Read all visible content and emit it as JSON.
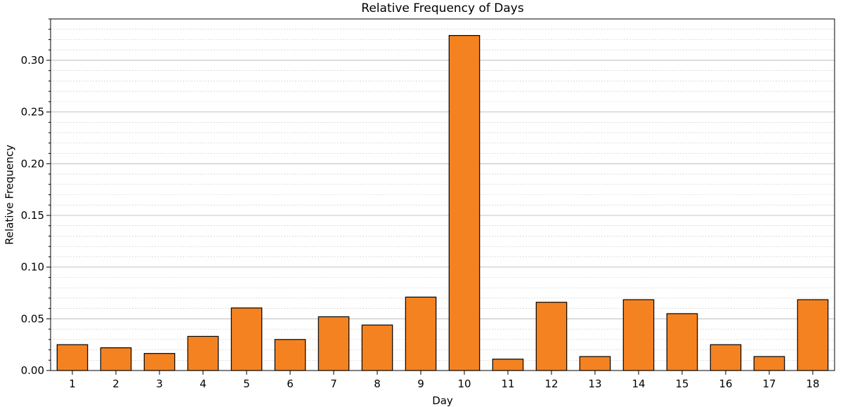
{
  "chart_data": {
    "type": "bar",
    "title": "Relative Frequency of Days",
    "xlabel": "Day",
    "ylabel": "Relative Frequency",
    "categories": [
      "1",
      "2",
      "3",
      "4",
      "5",
      "6",
      "7",
      "8",
      "9",
      "10",
      "11",
      "12",
      "13",
      "14",
      "15",
      "16",
      "17",
      "18"
    ],
    "values": [
      0.025,
      0.022,
      0.0165,
      0.033,
      0.0605,
      0.03,
      0.052,
      0.044,
      0.071,
      0.324,
      0.011,
      0.066,
      0.0135,
      0.0685,
      0.055,
      0.025,
      0.0135,
      0.0685
    ],
    "ylim": [
      0,
      0.34
    ],
    "yticks": [
      "0.00",
      "0.05",
      "0.10",
      "0.15",
      "0.20",
      "0.25",
      "0.30"
    ],
    "grid": true,
    "minor_grid": true,
    "bar_color": "#f58220",
    "edge_color": "#000000"
  }
}
